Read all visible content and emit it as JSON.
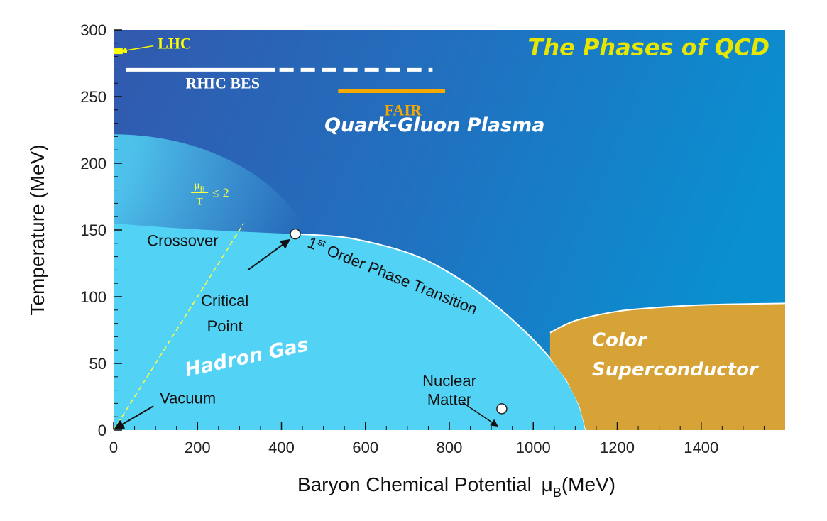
{
  "chart_data": {
    "type": "phase-diagram",
    "title": "The Phases of QCD",
    "xlabel": "Baryon Chemical Potential",
    "xlabel_symbol": "μ",
    "xlabel_sub": "B",
    "xlabel_unit": "(MeV)",
    "ylabel": "Temperature (MeV)",
    "xlim": [
      0,
      1600
    ],
    "ylim": [
      0,
      300
    ],
    "x_ticks": [
      0,
      200,
      400,
      600,
      800,
      1000,
      1200,
      1400
    ],
    "y_ticks": [
      0,
      50,
      100,
      150,
      200,
      250,
      300
    ],
    "phases": [
      {
        "name": "Quark-Gluon Plasma",
        "color": "#1f77c8"
      },
      {
        "name": "Hadron Gas",
        "color": "#4fd0f2"
      },
      {
        "name": "Color Superconductor",
        "color": "#d7a236"
      }
    ],
    "region_labels": {
      "qgp": "Quark-Gluon Plasma",
      "hadron": "Hadron Gas",
      "cs_line1": "Color",
      "cs_line2": "Superconductor"
    },
    "phase_boundary": {
      "label_prefix": "1",
      "label_sup": "st",
      "label_rest": " Order Phase Transition",
      "points": [
        [
          435,
          147
        ],
        [
          560,
          144
        ],
        [
          700,
          133
        ],
        [
          800,
          118
        ],
        [
          900,
          96
        ],
        [
          980,
          74
        ],
        [
          1040,
          54
        ],
        [
          1080,
          37
        ],
        [
          1110,
          18
        ],
        [
          1125,
          0
        ]
      ]
    },
    "cs_boundary": [
      [
        1040,
        73
      ],
      [
        1100,
        82
      ],
      [
        1200,
        89
      ],
      [
        1300,
        92
      ],
      [
        1420,
        94
      ],
      [
        1600,
        95
      ]
    ],
    "crossover_label": "Crossover",
    "critical_point": {
      "mu_B": 433,
      "T": 147,
      "label_line1": "Critical",
      "label_line2": "Point"
    },
    "nuclear_matter": {
      "mu_B": 925,
      "T": 16,
      "label_line1": "Nuclear",
      "label_line2": "Matter"
    },
    "vacuum": {
      "mu_B": 0,
      "T": 0,
      "label": "Vacuum"
    },
    "mu_over_T_line": {
      "slope": 0.5,
      "x_end": 310,
      "label_num": "μ",
      "label_num_sub": "B",
      "label_den": "T",
      "label_rel": "≤ 2",
      "color": "#ffff44"
    },
    "experiments": [
      {
        "name": "LHC",
        "mu_B": [
          0,
          5
        ],
        "T": 284,
        "color": "#ffff00",
        "style": "point"
      },
      {
        "name": "RHIC BES",
        "mu_B_solid": [
          30,
          385
        ],
        "mu_B_dashed": [
          385,
          760
        ],
        "T": 270,
        "color": "#ffffff"
      },
      {
        "name": "FAIR",
        "mu_B": [
          535,
          790
        ],
        "T": 254,
        "color": "#f5a800"
      }
    ],
    "colors": {
      "qgp_dark": "#2e62b3",
      "qgp_mid": "#1f7ec6",
      "qgp_light": "#0f93d3",
      "hadron": "#52d2f4",
      "superconductor": "#d7a236",
      "title": "#e6e600",
      "text_dark": "#111111",
      "text_light": "#ffffff"
    }
  }
}
